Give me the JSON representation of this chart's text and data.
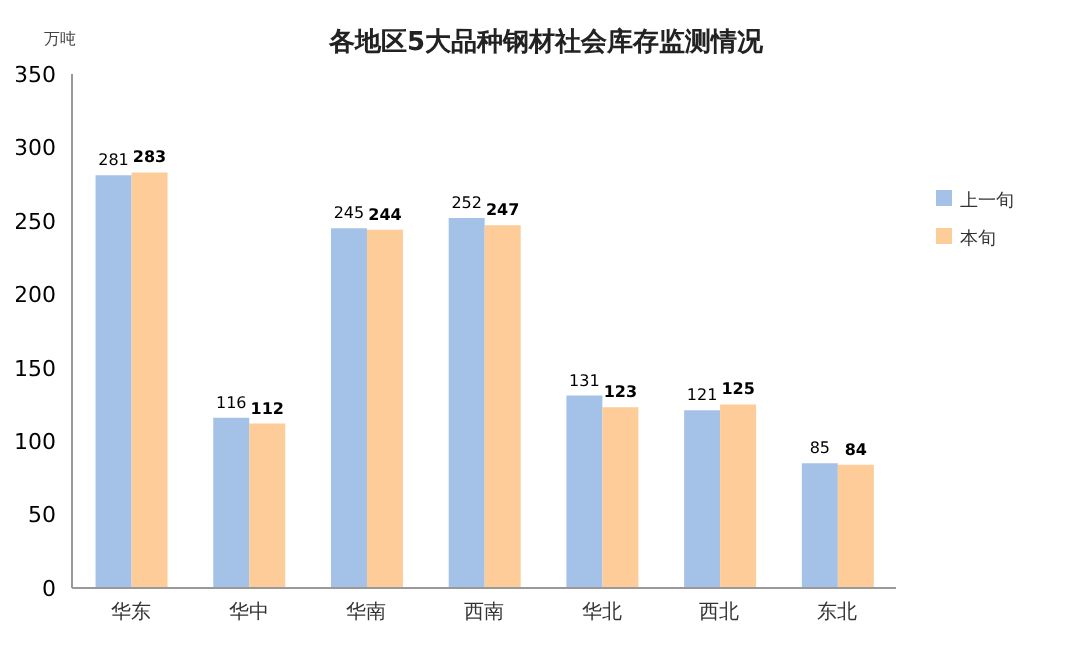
{
  "chart_data": {
    "type": "bar",
    "title": "各地区5大品种钢材社会库存监测情况",
    "ylabel": "万吨",
    "categories": [
      "华东",
      "华中",
      "华南",
      "西南",
      "华北",
      "西北",
      "东北"
    ],
    "series": [
      {
        "name": "上一旬",
        "color": "#a4c2e8",
        "values": [
          281,
          116,
          245,
          252,
          131,
          121,
          85
        ]
      },
      {
        "name": "本旬",
        "color": "#fdcc99",
        "values": [
          283,
          112,
          244,
          247,
          123,
          125,
          84
        ]
      }
    ],
    "ylim": [
      0,
      350
    ],
    "yticks": [
      0,
      50,
      100,
      150,
      200,
      250,
      300,
      350
    ],
    "legend": "right",
    "data_labels": true
  }
}
